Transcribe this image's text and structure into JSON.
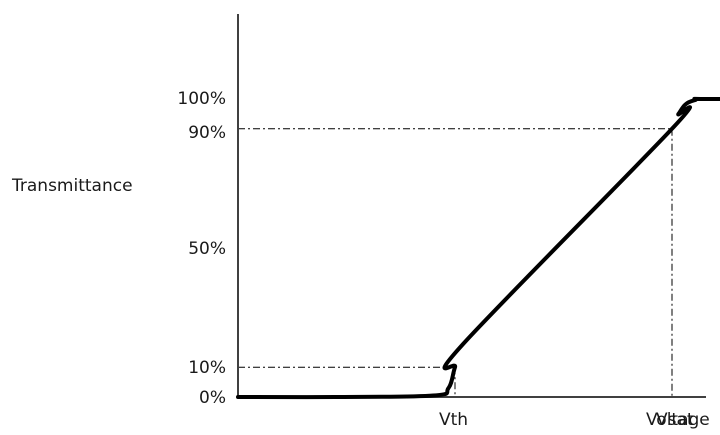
{
  "chart_data": {
    "type": "line",
    "title": "",
    "ylabel": "Transmittance",
    "xlabel": "Voltage",
    "y_ticks": [
      {
        "value": 100,
        "label": "100%"
      },
      {
        "value": 90,
        "label": "90%"
      },
      {
        "value": 50,
        "label": "50%"
      },
      {
        "value": 10,
        "label": "10%"
      },
      {
        "value": 0,
        "label": "0%"
      }
    ],
    "x_ticks": [
      {
        "value": 1.0,
        "label": "Vth"
      },
      {
        "value": 2.0,
        "label": "Vsat"
      }
    ],
    "ylim": [
      0,
      100
    ],
    "xlim": [
      0,
      3.8
    ],
    "reference_lines": [
      {
        "x": 1.0,
        "y": 10
      },
      {
        "x": 2.0,
        "y": 90
      }
    ],
    "series": [
      {
        "x": [
          0,
          0.45,
          0.9,
          0.97,
          1.0,
          1.04,
          2.0,
          2.03,
          2.1,
          2.3,
          3.8
        ],
        "y": [
          0,
          0,
          0.5,
          3,
          10,
          18,
          90,
          95,
          99.5,
          100,
          100
        ]
      }
    ],
    "grid": false,
    "colors": {
      "line": "#000000",
      "axis": "#404040",
      "guide": "#000000"
    }
  }
}
